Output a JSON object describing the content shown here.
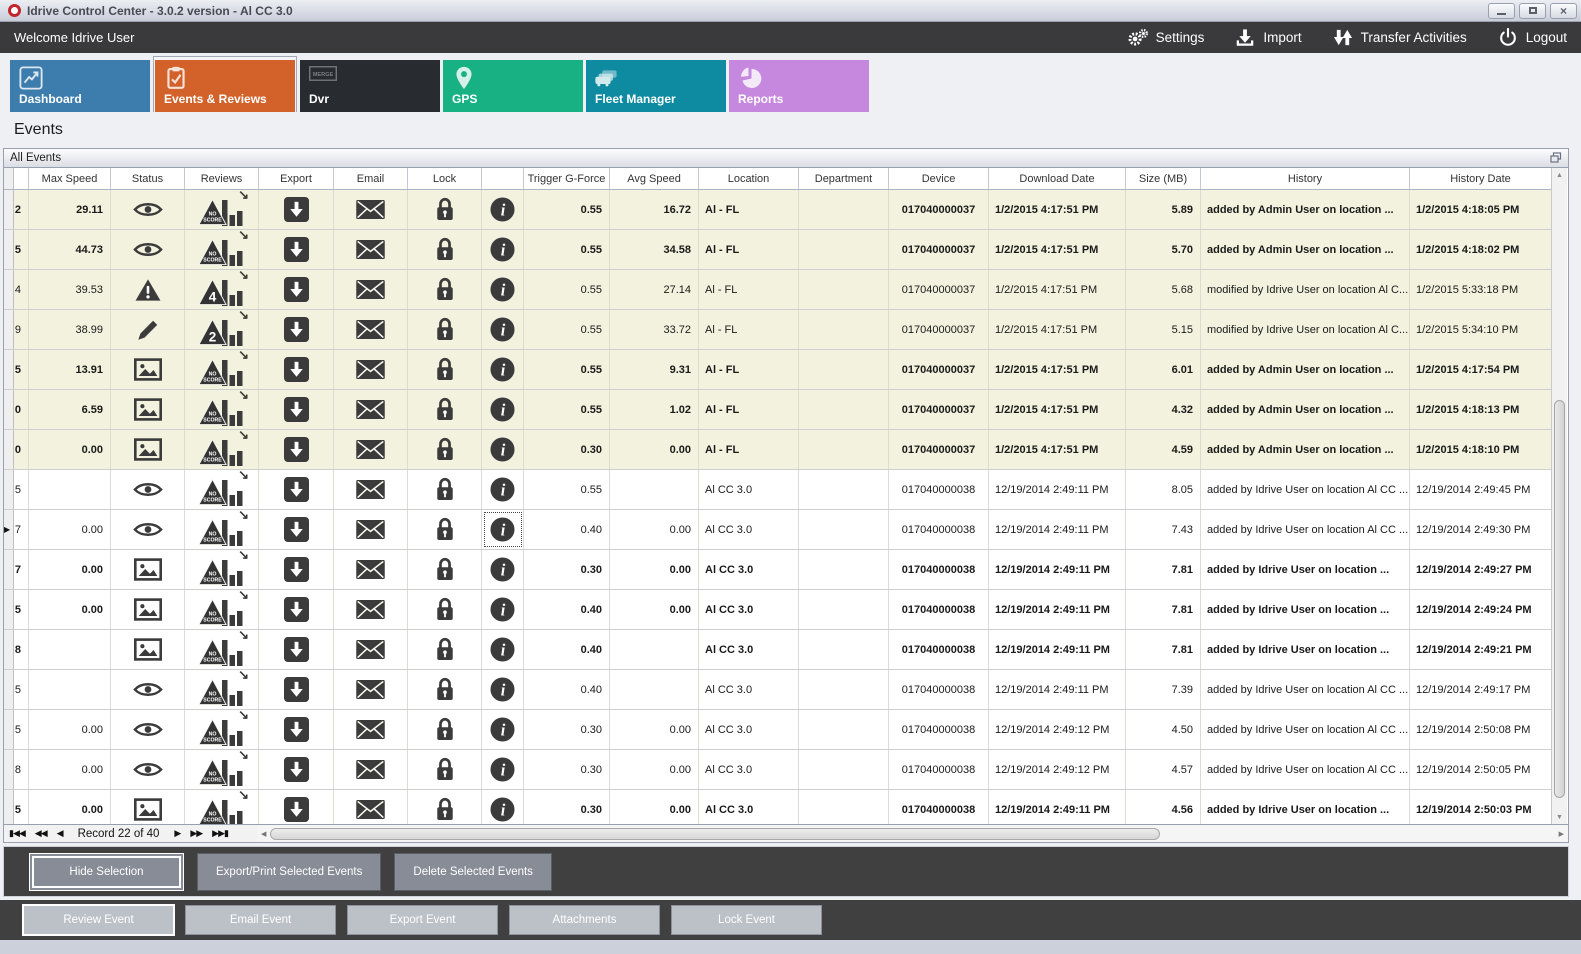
{
  "window": {
    "title": "Idrive Control Center - 3.0.2 version - Al CC 3.0",
    "controls": {
      "minimize": "minimize",
      "maximize": "maximize",
      "close": "×"
    }
  },
  "toolbar": {
    "welcome": "Welcome Idrive User",
    "actions": [
      {
        "label": "Settings",
        "icon": "gear-icon"
      },
      {
        "label": "Import",
        "icon": "import-icon"
      },
      {
        "label": "Transfer Activities",
        "icon": "transfer-icon"
      },
      {
        "label": "Logout",
        "icon": "power-icon"
      }
    ]
  },
  "tabs": [
    {
      "label": "Dashboard",
      "icon": "chart-icon",
      "color": "#3d7dad",
      "active": false
    },
    {
      "label": "Events & Reviews",
      "icon": "clipboard-icon",
      "color": "#d2622a",
      "active": true
    },
    {
      "label": "Dvr",
      "icon": "merge-icon",
      "color": "#282c30",
      "active": false
    },
    {
      "label": "GPS",
      "icon": "pin-icon",
      "color": "#17b183",
      "active": false
    },
    {
      "label": "Fleet Manager",
      "icon": "fleet-icon",
      "color": "#0e8ba0",
      "active": false
    },
    {
      "label": "Reports",
      "icon": "pie-icon",
      "color": "#c688de",
      "active": false
    }
  ],
  "page": {
    "heading": "Events",
    "panel_title": "All Events"
  },
  "table": {
    "columns": [
      "",
      "",
      "Max Speed",
      "Status",
      "Reviews",
      "Export",
      "Email",
      "Lock",
      "",
      "Trigger G-Force",
      "Avg Speed",
      "Location",
      "Department",
      "Device",
      "Download Date",
      "Size (MB)",
      "History",
      "History Date"
    ],
    "row_colors": {
      "highlight": "#f2f2de",
      "normal": "#ffffff"
    },
    "rows": [
      {
        "id": "2",
        "max": "29.11",
        "status": "eye",
        "score": "NO SCORE",
        "trigger": "0.55",
        "avg": "16.72",
        "location": "Al - FL",
        "department": "",
        "device": "017040000037",
        "download": "1/2/2015 4:17:51 PM",
        "size": "5.89",
        "history": "added by Admin User on location ...",
        "history_date": "1/2/2015 4:18:05 PM",
        "hl": true,
        "bold": true,
        "sel": false
      },
      {
        "id": "5",
        "max": "44.73",
        "status": "eye",
        "score": "NO SCORE",
        "trigger": "0.55",
        "avg": "34.58",
        "location": "Al - FL",
        "department": "",
        "device": "017040000037",
        "download": "1/2/2015 4:17:51 PM",
        "size": "5.70",
        "history": "added by Admin User on location ...",
        "history_date": "1/2/2015 4:18:02 PM",
        "hl": true,
        "bold": true,
        "sel": false
      },
      {
        "id": "4",
        "max": "39.53",
        "status": "warning",
        "score": "4",
        "trigger": "0.55",
        "avg": "27.14",
        "location": "Al - FL",
        "department": "",
        "device": "017040000037",
        "download": "1/2/2015 4:17:51 PM",
        "size": "5.68",
        "history": "modified by Idrive User on location Al C...",
        "history_date": "1/2/2015 5:33:18 PM",
        "hl": true,
        "bold": false,
        "sel": false
      },
      {
        "id": "9",
        "max": "38.99",
        "status": "pencil",
        "score": "2",
        "trigger": "0.55",
        "avg": "33.72",
        "location": "Al - FL",
        "department": "",
        "device": "017040000037",
        "download": "1/2/2015 4:17:51 PM",
        "size": "5.15",
        "history": "modified by Idrive User on location Al C...",
        "history_date": "1/2/2015 5:34:10 PM",
        "hl": true,
        "bold": false,
        "sel": false
      },
      {
        "id": "5",
        "max": "13.91",
        "status": "image",
        "score": "NO SCORE",
        "trigger": "0.55",
        "avg": "9.31",
        "location": "Al - FL",
        "department": "",
        "device": "017040000037",
        "download": "1/2/2015 4:17:51 PM",
        "size": "6.01",
        "history": "added by Admin User on location ...",
        "history_date": "1/2/2015 4:17:54 PM",
        "hl": true,
        "bold": true,
        "sel": false
      },
      {
        "id": "0",
        "max": "6.59",
        "status": "image",
        "score": "NO SCORE",
        "trigger": "0.55",
        "avg": "1.02",
        "location": "Al - FL",
        "department": "",
        "device": "017040000037",
        "download": "1/2/2015 4:17:51 PM",
        "size": "4.32",
        "history": "added by Admin User on location ...",
        "history_date": "1/2/2015 4:18:13 PM",
        "hl": true,
        "bold": true,
        "sel": false
      },
      {
        "id": "0",
        "max": "0.00",
        "status": "image",
        "score": "NO SCORE",
        "trigger": "0.30",
        "avg": "0.00",
        "location": "Al - FL",
        "department": "",
        "device": "017040000037",
        "download": "1/2/2015 4:17:51 PM",
        "size": "4.59",
        "history": "added by Admin User on location ...",
        "history_date": "1/2/2015 4:18:10 PM",
        "hl": true,
        "bold": true,
        "sel": false
      },
      {
        "id": "5",
        "max": "",
        "status": "eye",
        "score": "NO SCORE",
        "trigger": "0.55",
        "avg": "",
        "location": "Al CC 3.0",
        "department": "",
        "device": "017040000038",
        "download": "12/19/2014 2:49:11 PM",
        "size": "8.05",
        "history": "added by Idrive User on location Al CC ...",
        "history_date": "12/19/2014 2:49:45 PM",
        "hl": false,
        "bold": false,
        "sel": false
      },
      {
        "id": "7",
        "max": "0.00",
        "status": "eye",
        "score": "NO SCORE",
        "trigger": "0.40",
        "avg": "0.00",
        "location": "Al CC 3.0",
        "department": "",
        "device": "017040000038",
        "download": "12/19/2014 2:49:11 PM",
        "size": "7.43",
        "history": "added by Idrive User on location Al CC ...",
        "history_date": "12/19/2014 2:49:30 PM",
        "hl": false,
        "bold": false,
        "sel": true
      },
      {
        "id": "7",
        "max": "0.00",
        "status": "image",
        "score": "NO SCORE",
        "trigger": "0.30",
        "avg": "0.00",
        "location": "Al CC 3.0",
        "department": "",
        "device": "017040000038",
        "download": "12/19/2014 2:49:11 PM",
        "size": "7.81",
        "history": "added by Idrive User on location ...",
        "history_date": "12/19/2014 2:49:27 PM",
        "hl": false,
        "bold": true,
        "sel": false
      },
      {
        "id": "5",
        "max": "0.00",
        "status": "image",
        "score": "NO SCORE",
        "trigger": "0.40",
        "avg": "0.00",
        "location": "Al CC 3.0",
        "department": "",
        "device": "017040000038",
        "download": "12/19/2014 2:49:11 PM",
        "size": "7.81",
        "history": "added by Idrive User on location ...",
        "history_date": "12/19/2014 2:49:24 PM",
        "hl": false,
        "bold": true,
        "sel": false
      },
      {
        "id": "8",
        "max": "",
        "status": "image",
        "score": "NO SCORE",
        "trigger": "0.40",
        "avg": "",
        "location": "Al CC 3.0",
        "department": "",
        "device": "017040000038",
        "download": "12/19/2014 2:49:11 PM",
        "size": "7.81",
        "history": "added by Idrive User on location ...",
        "history_date": "12/19/2014 2:49:21 PM",
        "hl": false,
        "bold": true,
        "sel": false
      },
      {
        "id": "5",
        "max": "",
        "status": "eye",
        "score": "NO SCORE",
        "trigger": "0.40",
        "avg": "",
        "location": "Al CC 3.0",
        "department": "",
        "device": "017040000038",
        "download": "12/19/2014 2:49:11 PM",
        "size": "7.39",
        "history": "added by Idrive User on location Al CC ...",
        "history_date": "12/19/2014 2:49:17 PM",
        "hl": false,
        "bold": false,
        "sel": false
      },
      {
        "id": "5",
        "max": "0.00",
        "status": "eye",
        "score": "NO SCORE",
        "trigger": "0.30",
        "avg": "0.00",
        "location": "Al CC 3.0",
        "department": "",
        "device": "017040000038",
        "download": "12/19/2014 2:49:12 PM",
        "size": "4.50",
        "history": "added by Idrive User on location Al CC ...",
        "history_date": "12/19/2014 2:50:08 PM",
        "hl": false,
        "bold": false,
        "sel": false
      },
      {
        "id": "8",
        "max": "0.00",
        "status": "eye",
        "score": "NO SCORE",
        "trigger": "0.30",
        "avg": "0.00",
        "location": "Al CC 3.0",
        "department": "",
        "device": "017040000038",
        "download": "12/19/2014 2:49:12 PM",
        "size": "4.57",
        "history": "added by Idrive User on location Al CC ...",
        "history_date": "12/19/2014 2:50:05 PM",
        "hl": false,
        "bold": false,
        "sel": false
      },
      {
        "id": "5",
        "max": "0.00",
        "status": "image",
        "score": "NO SCORE",
        "trigger": "0.30",
        "avg": "0.00",
        "location": "Al CC 3.0",
        "department": "",
        "device": "017040000038",
        "download": "12/19/2014 2:49:11 PM",
        "size": "4.56",
        "history": "added by Idrive User on location ...",
        "history_date": "12/19/2014 2:50:03 PM",
        "hl": false,
        "bold": true,
        "sel": false
      }
    ]
  },
  "navigator": {
    "record_label": "Record 22 of 40"
  },
  "panels": {
    "selection_buttons": [
      "Hide Selection",
      "Export/Print Selected Events",
      "Delete Selected  Events"
    ],
    "event_buttons": [
      "Review Event",
      "Email Event",
      "Export Event",
      "Attachments",
      "Lock Event"
    ]
  }
}
